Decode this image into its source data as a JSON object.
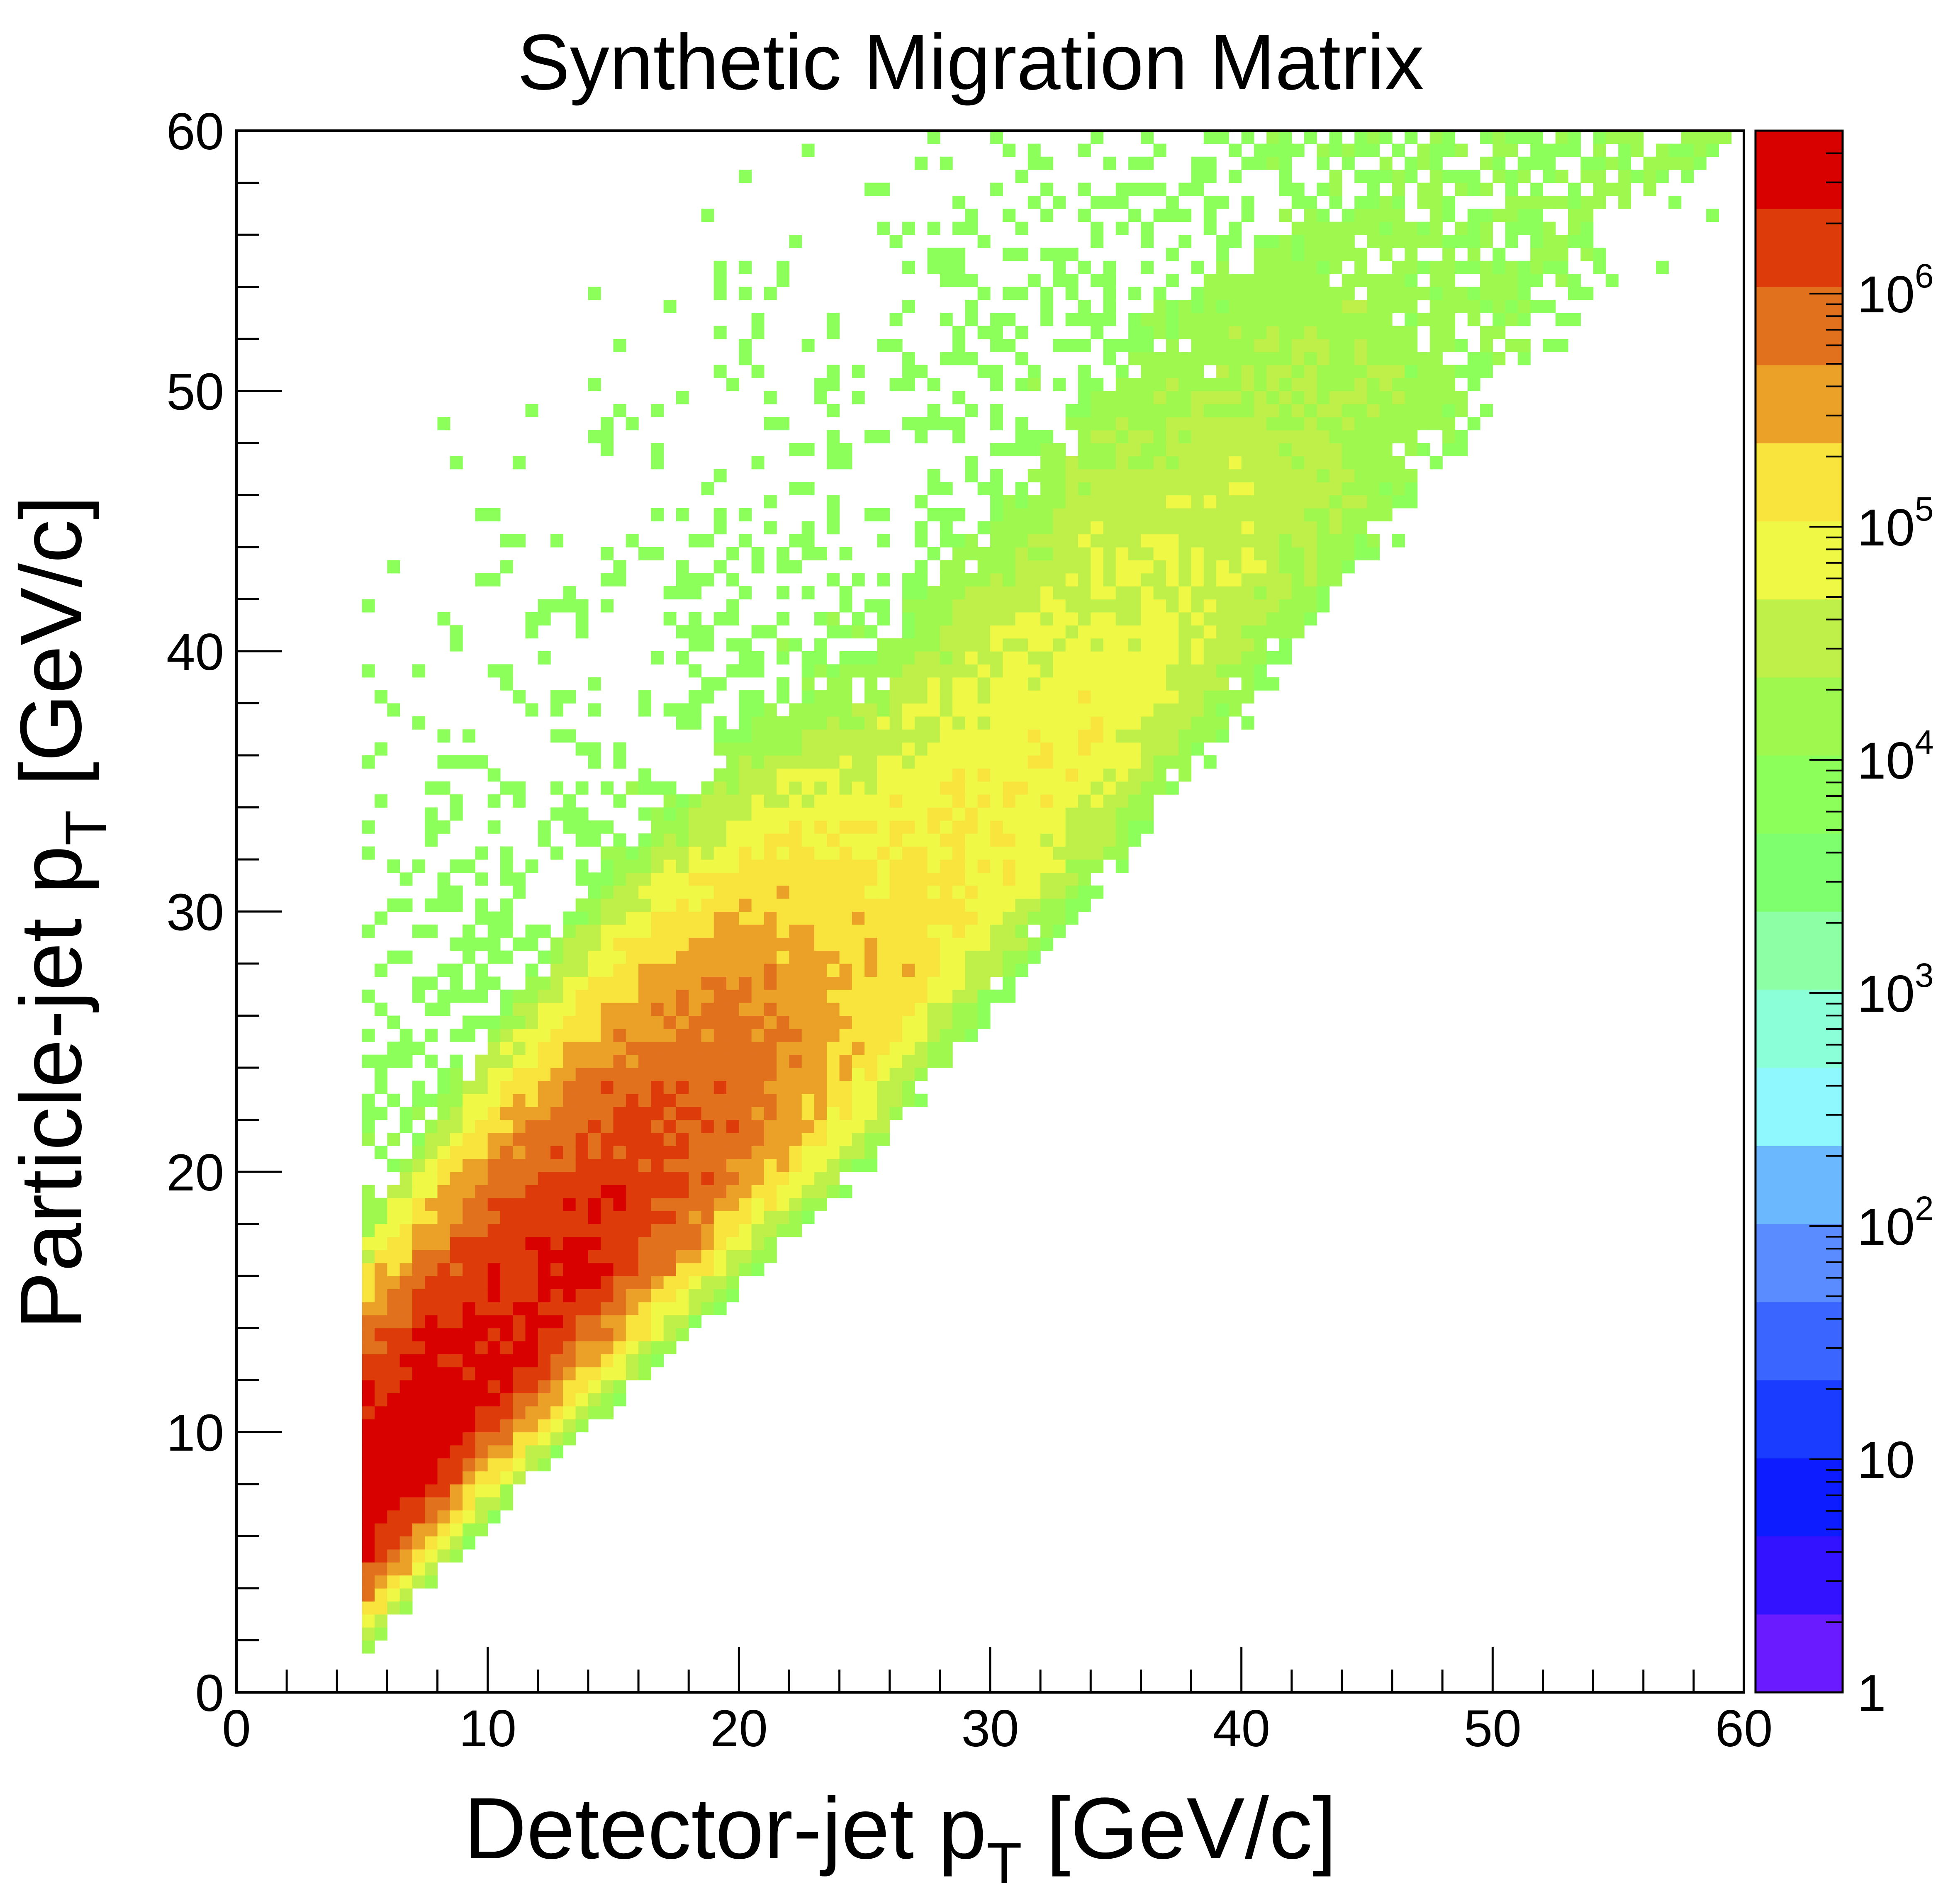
{
  "chart_data": {
    "type": "heatmap",
    "title": "Synthetic Migration Matrix",
    "xlabel": "Detector-jet p",
    "xlabel_sub": "T",
    "xlabel_unit": " [GeV/c]",
    "ylabel": "Particle-jet p",
    "ylabel_sub": "T",
    "ylabel_unit": " [GeV/c]",
    "xlim": [
      0,
      60
    ],
    "ylim": [
      0,
      60
    ],
    "x_ticks": [
      "0",
      "10",
      "20",
      "30",
      "40",
      "50",
      "60"
    ],
    "y_ticks": [
      "0",
      "10",
      "20",
      "30",
      "40",
      "50",
      "60"
    ],
    "z_scale": "log",
    "zlim": [
      1,
      5000000
    ],
    "palette_ticks": [
      {
        "base": "1",
        "exp": "",
        "value": 1
      },
      {
        "base": "10",
        "exp": "",
        "value": 10
      },
      {
        "base": "10",
        "exp": "2",
        "value": 100
      },
      {
        "base": "10",
        "exp": "3",
        "value": 1000
      },
      {
        "base": "10",
        "exp": "4",
        "value": 10000
      },
      {
        "base": "10",
        "exp": "5",
        "value": 100000
      },
      {
        "base": "10",
        "exp": "6",
        "value": 1000000
      }
    ],
    "palette_colors": [
      "#6a1bff",
      "#3312ff",
      "#0d1cff",
      "#1a3cff",
      "#3a66ff",
      "#5a8bff",
      "#6bb8ff",
      "#8ff8ff",
      "#8affd8",
      "#8dffa4",
      "#7dff6e",
      "#8cff5a",
      "#9ef84d",
      "#bff04a",
      "#eef845",
      "#f8e43d",
      "#eba128",
      "#e2711e",
      "#dd3b0a",
      "#d90000"
    ],
    "min_x": 5,
    "bin_width": 0.5,
    "ridge": [
      {
        "x": 5,
        "y": 7.0
      },
      {
        "x": 10,
        "y": 12.5
      },
      {
        "x": 15,
        "y": 17.5
      },
      {
        "x": 20,
        "y": 22.0
      },
      {
        "x": 25,
        "y": 26.0
      },
      {
        "x": 30,
        "y": 32.0
      },
      {
        "x": 35,
        "y": 37.5
      },
      {
        "x": 40,
        "y": 43.0
      },
      {
        "x": 45,
        "y": 48.0
      },
      {
        "x": 50,
        "y": 53.0
      },
      {
        "x": 55,
        "y": 57.0
      },
      {
        "x": 60,
        "y": 60.0
      }
    ],
    "peak_log10": [
      {
        "x": 5,
        "z": 6.7
      },
      {
        "x": 10,
        "z": 6.5
      },
      {
        "x": 15,
        "z": 6.3
      },
      {
        "x": 20,
        "z": 5.9
      },
      {
        "x": 25,
        "z": 5.3
      },
      {
        "x": 30,
        "z": 5.0
      },
      {
        "x": 35,
        "z": 4.85
      },
      {
        "x": 40,
        "z": 4.6
      },
      {
        "x": 45,
        "z": 4.3
      },
      {
        "x": 50,
        "z": 4.0
      },
      {
        "x": 55,
        "z": 3.85
      },
      {
        "x": 60,
        "z": 3.75
      }
    ]
  }
}
